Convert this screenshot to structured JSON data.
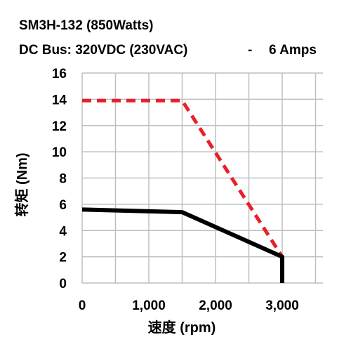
{
  "chart_data": {
    "type": "line",
    "title_line1": "SM3H-132 (850Watts)",
    "title_line2_left": "DC Bus: 320VDC (230VAC)",
    "title_line2_sep": "-",
    "title_line2_right": "6 Amps",
    "xlabel": "速度 (rpm)",
    "ylabel": "转矩 (Nm)",
    "xlim": [
      0,
      3000
    ],
    "ylim": [
      0,
      16
    ],
    "x_ticks": [
      0,
      1000,
      2000,
      3000
    ],
    "x_tick_labels": [
      "0",
      "1,000",
      "2,000",
      "3,000"
    ],
    "y_ticks": [
      0,
      2,
      4,
      6,
      8,
      10,
      12,
      14,
      16
    ],
    "y_tick_labels": [
      "0",
      "2",
      "4",
      "6",
      "8",
      "10",
      "12",
      "14",
      "16"
    ],
    "grid": true,
    "series": [
      {
        "style": "dashed",
        "color": "#e8202a",
        "points": [
          [
            0,
            13.9
          ],
          [
            1500,
            13.9
          ],
          [
            3000,
            2.0
          ]
        ]
      },
      {
        "style": "solid",
        "color": "#000000",
        "points": [
          [
            0,
            5.6
          ],
          [
            1500,
            5.4
          ],
          [
            3000,
            2.0
          ],
          [
            3000,
            0.0
          ]
        ]
      }
    ]
  }
}
